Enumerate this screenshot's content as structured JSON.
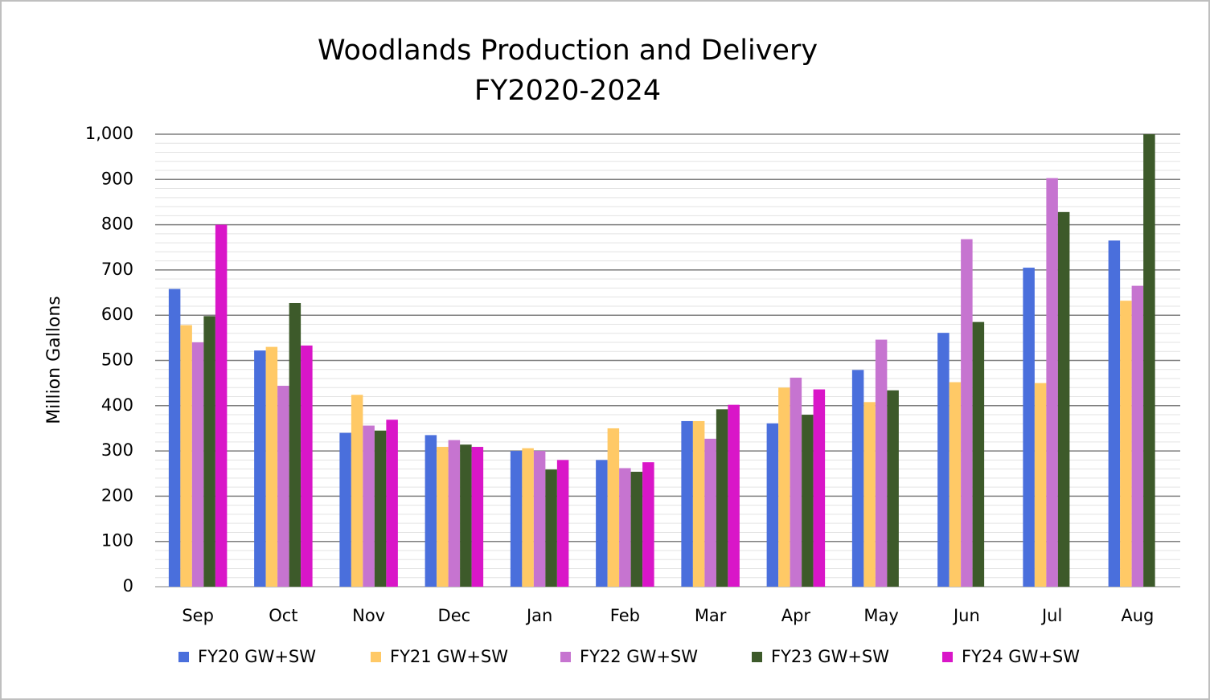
{
  "chart_data": {
    "type": "bar",
    "title": "Woodlands Production and Delivery",
    "subtitle": "FY2020-2024",
    "y_label": "Million Gallons",
    "categories": [
      "Sep",
      "Oct",
      "Nov",
      "Dec",
      "Jan",
      "Feb",
      "Mar",
      "Apr",
      "May",
      "Jun",
      "Jul",
      "Aug"
    ],
    "series": [
      {
        "name": "FY20 GW+SW",
        "color": "#4a6fdc",
        "values": [
          658,
          522,
          340,
          335,
          300,
          280,
          366,
          361,
          479,
          561,
          705,
          765
        ]
      },
      {
        "name": "FY21 GW+SW",
        "color": "#ffc966",
        "values": [
          578,
          530,
          424,
          309,
          306,
          350,
          366,
          440,
          408,
          452,
          450,
          632
        ]
      },
      {
        "name": "FY22 GW+SW",
        "color": "#c674d0",
        "values": [
          540,
          444,
          356,
          324,
          300,
          262,
          327,
          462,
          546,
          768,
          903,
          665
        ]
      },
      {
        "name": "FY23 GW+SW",
        "color": "#3d5a2a",
        "values": [
          598,
          627,
          345,
          314,
          259,
          254,
          392,
          380,
          434,
          585,
          828,
          1000
        ]
      },
      {
        "name": "FY24 GW+SW",
        "color": "#d916c8",
        "values": [
          800,
          533,
          369,
          309,
          280,
          275,
          402,
          436,
          null,
          null,
          null,
          null
        ]
      }
    ],
    "ylim": [
      0,
      1000
    ],
    "yticks": [
      0,
      100,
      200,
      300,
      400,
      500,
      600,
      700,
      800,
      900,
      {
        "value": 1000,
        "label": "1,000"
      }
    ],
    "grid": true,
    "legend": "bottom"
  }
}
